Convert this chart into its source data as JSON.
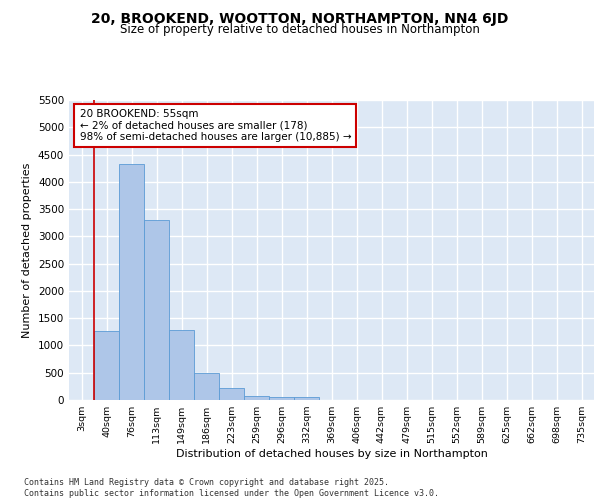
{
  "title": "20, BROOKEND, WOOTTON, NORTHAMPTON, NN4 6JD",
  "subtitle": "Size of property relative to detached houses in Northampton",
  "xlabel": "Distribution of detached houses by size in Northampton",
  "ylabel": "Number of detached properties",
  "bar_color": "#aec6e8",
  "bar_edge_color": "#5b9bd5",
  "background_color": "#dde8f5",
  "grid_color": "#ffffff",
  "bin_labels": [
    "3sqm",
    "40sqm",
    "76sqm",
    "113sqm",
    "149sqm",
    "186sqm",
    "223sqm",
    "259sqm",
    "296sqm",
    "332sqm",
    "369sqm",
    "406sqm",
    "442sqm",
    "479sqm",
    "515sqm",
    "552sqm",
    "589sqm",
    "625sqm",
    "662sqm",
    "698sqm",
    "735sqm"
  ],
  "bar_values": [
    0,
    1270,
    4330,
    3300,
    1280,
    500,
    220,
    80,
    50,
    50,
    0,
    0,
    0,
    0,
    0,
    0,
    0,
    0,
    0,
    0,
    0
  ],
  "ylim": [
    0,
    5500
  ],
  "yticks": [
    0,
    500,
    1000,
    1500,
    2000,
    2500,
    3000,
    3500,
    4000,
    4500,
    5000,
    5500
  ],
  "vline_x_index": 1,
  "annotation_text": "20 BROOKEND: 55sqm\n← 2% of detached houses are smaller (178)\n98% of semi-detached houses are larger (10,885) →",
  "annotation_box_color": "#ffffff",
  "annotation_box_edge": "#cc0000",
  "vline_color": "#cc0000",
  "footer_line1": "Contains HM Land Registry data © Crown copyright and database right 2025.",
  "footer_line2": "Contains public sector information licensed under the Open Government Licence v3.0."
}
